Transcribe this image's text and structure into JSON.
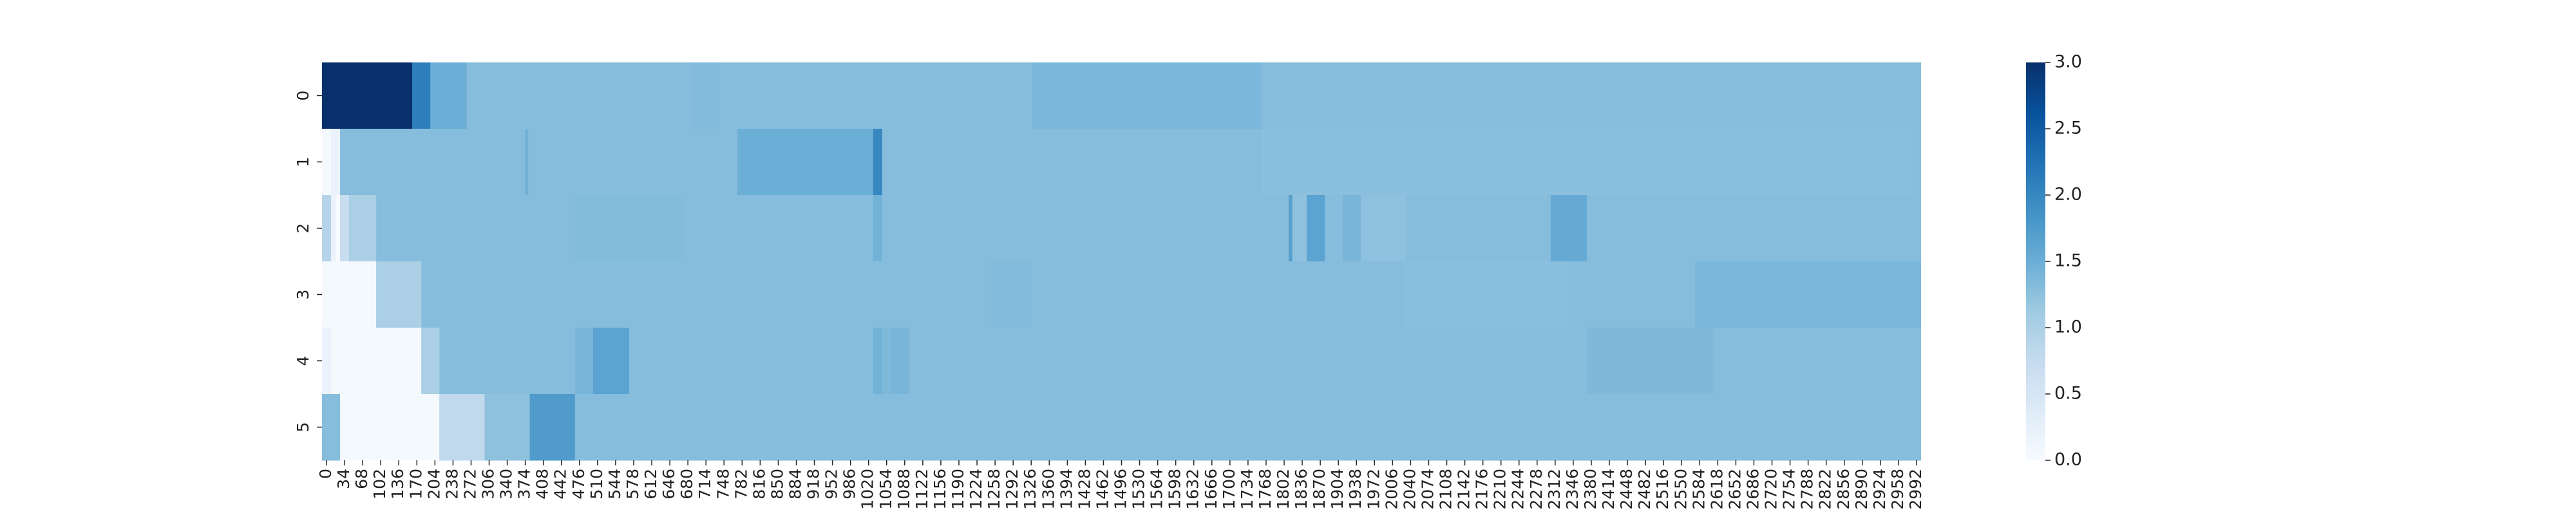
{
  "chart_data": {
    "type": "heatmap",
    "title": "",
    "xlabel": "",
    "ylabel": "",
    "x_start": 0,
    "x_step": 17,
    "x_count": 177,
    "x_tick_labels": [
      "0",
      "34",
      "68",
      "102",
      "136",
      "170",
      "204",
      "238",
      "272",
      "306",
      "340",
      "374",
      "408",
      "442",
      "476",
      "510",
      "544",
      "578",
      "612",
      "646",
      "680",
      "714",
      "748",
      "782",
      "816",
      "850",
      "884",
      "918",
      "952",
      "986",
      "1020",
      "1054",
      "1088",
      "1122",
      "1156",
      "1190",
      "1224",
      "1258",
      "1292",
      "1326",
      "1360",
      "1394",
      "1428",
      "1462",
      "1496",
      "1530",
      "1564",
      "1598",
      "1632",
      "1666",
      "1700",
      "1734",
      "1768",
      "1802",
      "1836",
      "1870",
      "1904",
      "1938",
      "1972",
      "2006",
      "2040",
      "2074",
      "2108",
      "2142",
      "2176",
      "2210",
      "2244",
      "2278",
      "2312",
      "2346",
      "2380",
      "2414",
      "2448",
      "2482",
      "2516",
      "2550",
      "2584",
      "2618",
      "2652",
      "2686",
      "2720",
      "2754",
      "2788",
      "2822",
      "2856",
      "2890",
      "2924",
      "2958",
      "2992"
    ],
    "y_tick_labels": [
      "0",
      "1",
      "2",
      "3",
      "4",
      "5"
    ],
    "vmin": 0,
    "vmax": 3,
    "colormap": "Blues",
    "colorbar_ticks": [
      "0.0",
      "0.5",
      "1.0",
      "1.5",
      "2.0",
      "2.5",
      "3.0"
    ],
    "baseline_value": 1.3,
    "rows": [
      {
        "label": "0",
        "segments": [
          {
            "from": 0,
            "to": 170,
            "value": 3.0
          },
          {
            "from": 170,
            "to": 204,
            "value": 2.1
          },
          {
            "from": 204,
            "to": 272,
            "value": 1.5
          },
          {
            "from": 697,
            "to": 748,
            "value": 1.33
          },
          {
            "from": 1336,
            "to": 1768,
            "value": 1.38
          }
        ]
      },
      {
        "label": "1",
        "segments": [
          {
            "from": 0,
            "to": 17,
            "value": 0.05
          },
          {
            "from": 17,
            "to": 34,
            "value": 0.2
          },
          {
            "from": 382,
            "to": 388,
            "value": 1.45
          },
          {
            "from": 782,
            "to": 1037,
            "value": 1.5
          },
          {
            "from": 1037,
            "to": 1054,
            "value": 2.0
          },
          {
            "from": 1768,
            "to": 2992,
            "value": 1.27
          }
        ]
      },
      {
        "label": "2",
        "segments": [
          {
            "from": 0,
            "to": 17,
            "value": 0.9
          },
          {
            "from": 17,
            "to": 25,
            "value": 0.2
          },
          {
            "from": 25,
            "to": 34,
            "value": 0.0
          },
          {
            "from": 34,
            "to": 51,
            "value": 0.7
          },
          {
            "from": 51,
            "to": 102,
            "value": 1.0
          },
          {
            "from": 476,
            "to": 680,
            "value": 1.32
          },
          {
            "from": 1037,
            "to": 1054,
            "value": 1.45
          },
          {
            "from": 1819,
            "to": 1826,
            "value": 1.7
          },
          {
            "from": 1826,
            "to": 1853,
            "value": 1.25
          },
          {
            "from": 1853,
            "to": 1887,
            "value": 1.65
          },
          {
            "from": 1887,
            "to": 1921,
            "value": 1.3
          },
          {
            "from": 1921,
            "to": 1955,
            "value": 1.4
          },
          {
            "from": 1955,
            "to": 2040,
            "value": 1.25
          },
          {
            "from": 2312,
            "to": 2380,
            "value": 1.55
          }
        ]
      },
      {
        "label": "3",
        "segments": [
          {
            "from": 0,
            "to": 102,
            "value": 0.05
          },
          {
            "from": 102,
            "to": 187,
            "value": 1.0
          },
          {
            "from": 1258,
            "to": 1336,
            "value": 1.33
          },
          {
            "from": 2040,
            "to": 2346,
            "value": 1.28
          },
          {
            "from": 2584,
            "to": 3009,
            "value": 1.38
          }
        ]
      },
      {
        "label": "4",
        "segments": [
          {
            "from": 0,
            "to": 17,
            "value": 0.2
          },
          {
            "from": 17,
            "to": 187,
            "value": 0.05
          },
          {
            "from": 187,
            "to": 221,
            "value": 1.0
          },
          {
            "from": 476,
            "to": 510,
            "value": 1.4
          },
          {
            "from": 510,
            "to": 578,
            "value": 1.65
          },
          {
            "from": 1037,
            "to": 1054,
            "value": 1.45
          },
          {
            "from": 1054,
            "to": 1071,
            "value": 1.35
          },
          {
            "from": 1071,
            "to": 1105,
            "value": 1.4
          },
          {
            "from": 1105,
            "to": 1241,
            "value": 1.3
          },
          {
            "from": 2380,
            "to": 2618,
            "value": 1.35
          }
        ]
      },
      {
        "label": "5",
        "segments": [
          {
            "from": 0,
            "to": 34,
            "value": 1.3
          },
          {
            "from": 34,
            "to": 221,
            "value": 0.05
          },
          {
            "from": 221,
            "to": 306,
            "value": 0.8
          },
          {
            "from": 306,
            "to": 391,
            "value": 1.25
          },
          {
            "from": 391,
            "to": 476,
            "value": 1.75
          }
        ]
      }
    ]
  }
}
